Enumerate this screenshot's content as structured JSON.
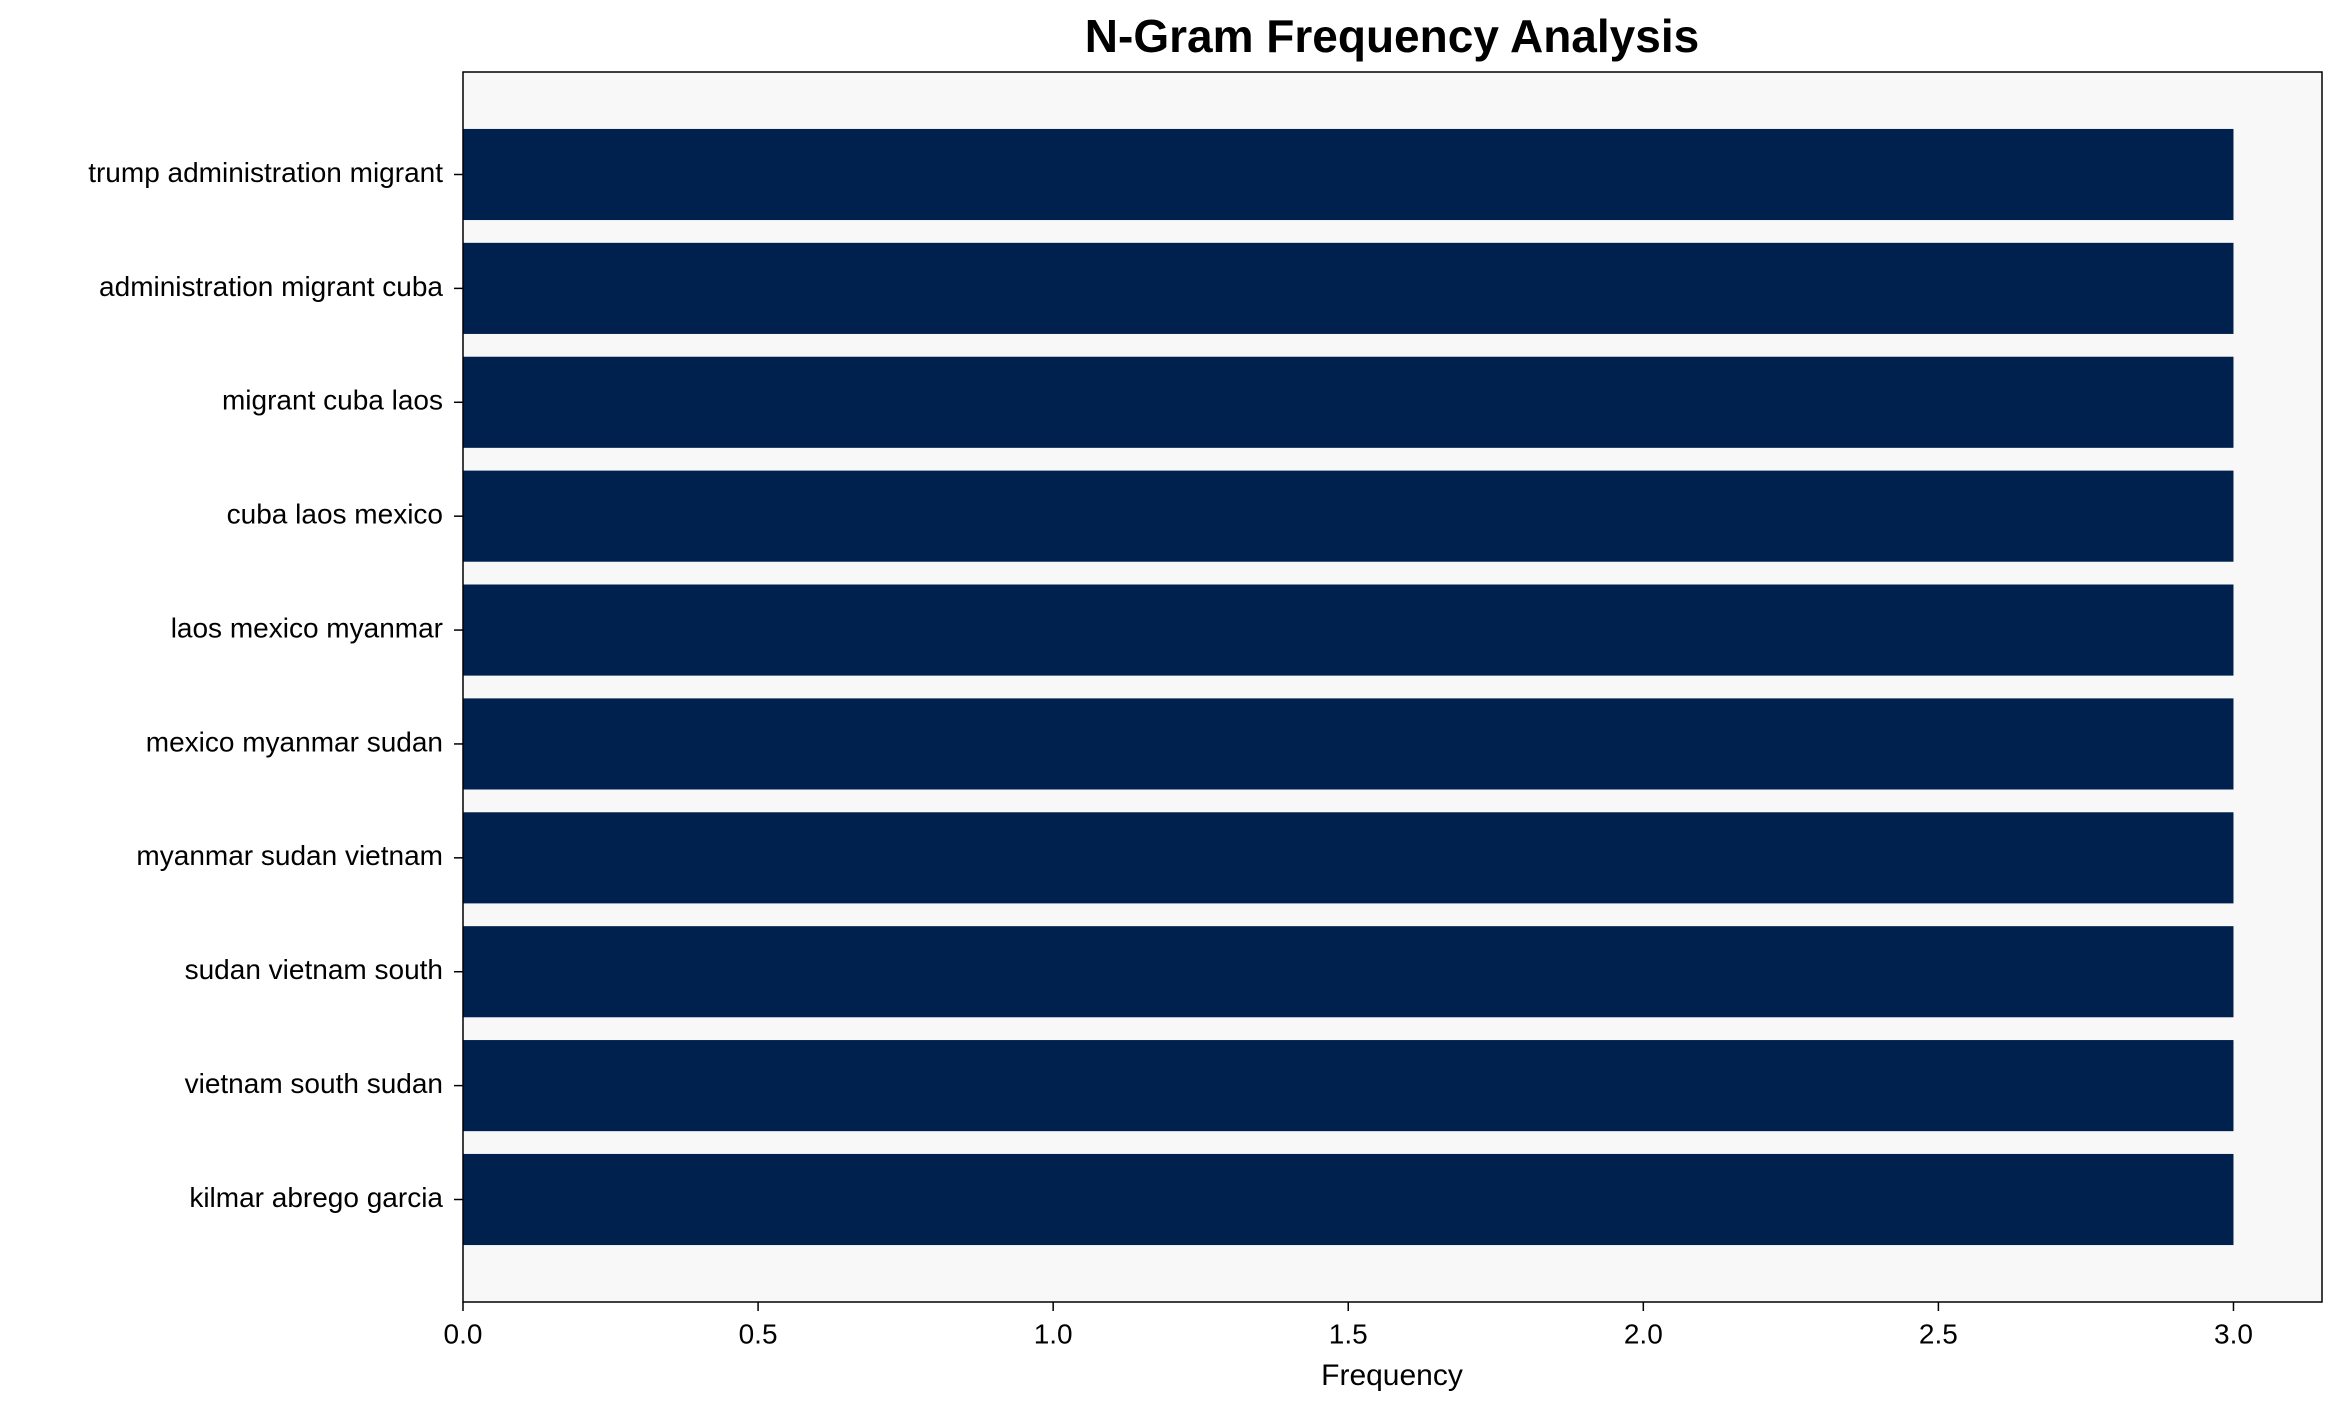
{
  "chart_data": {
    "type": "barh",
    "title": "N-Gram Frequency Analysis",
    "x_label": "Frequency",
    "categories": [
      "trump administration migrant",
      "administration migrant cuba",
      "migrant cuba laos",
      "cuba laos mexico",
      "laos mexico myanmar",
      "mexico myanmar sudan",
      "myanmar sudan vietnam",
      "sudan vietnam south",
      "vietnam south sudan",
      "kilmar abrego garcia"
    ],
    "values": [
      3,
      3,
      3,
      3,
      3,
      3,
      3,
      3,
      3,
      3
    ],
    "color": "#00214d",
    "background": "#f8f8f8",
    "xlim": [
      0,
      3.15
    ],
    "xticks": [
      {
        "value": 0,
        "label": "0.0"
      },
      0.5,
      {
        "value": 1,
        "label": "1.0"
      },
      1.5,
      {
        "value": 2,
        "label": "2.0"
      },
      2.5,
      {
        "value": 3,
        "label": "3.0"
      }
    ]
  }
}
